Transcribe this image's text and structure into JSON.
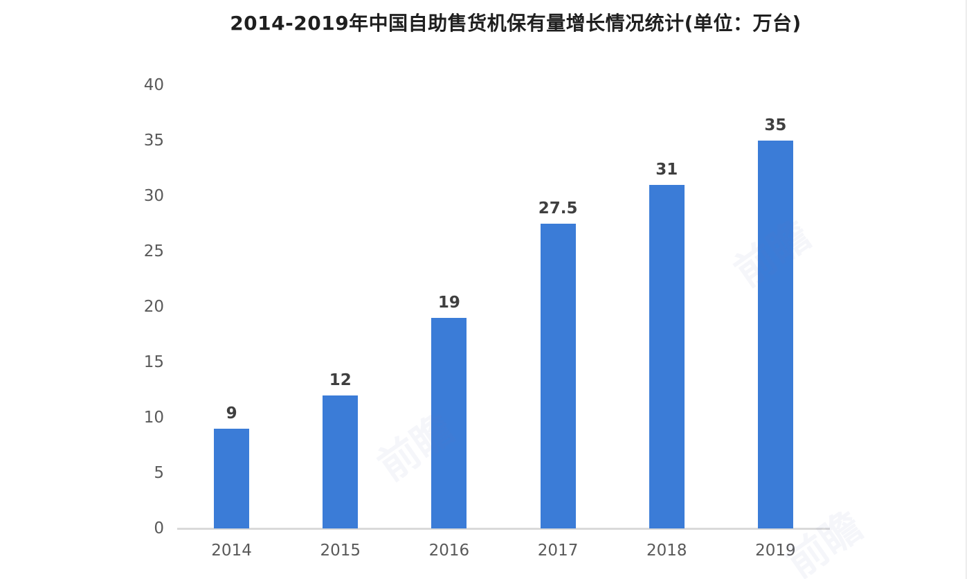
{
  "title": "2014-2019年中国自助售货机保有量增长情况统计(单位：万台)",
  "watermark": {
    "text": "前瞻"
  },
  "colors": {
    "bar": "#3b7cd7",
    "axis_line": "#d9d9d9",
    "tick_label": "#595959",
    "value_label": "#3f3f3f",
    "title": "#1f1f1f",
    "background": "#ffffff",
    "watermark": "#6b76b8",
    "right_edge": "#ececec"
  },
  "chart_data": {
    "type": "bar",
    "title": "2014-2019年中国自助售货机保有量增长情况统计(单位：万台)",
    "categories": [
      "2014",
      "2015",
      "2016",
      "2017",
      "2018",
      "2019"
    ],
    "values": [
      9,
      12,
      19,
      27.5,
      31,
      35
    ],
    "value_labels": [
      "9",
      "12",
      "19",
      "27.5",
      "31",
      "35"
    ],
    "xlabel": "",
    "ylabel": "",
    "unit": "万台",
    "ylim": [
      0,
      40
    ],
    "yticks": [
      0,
      5,
      10,
      15,
      20,
      25,
      30,
      35,
      40
    ],
    "grid": false,
    "legend": false,
    "bar_color": "#3b7cd7"
  }
}
